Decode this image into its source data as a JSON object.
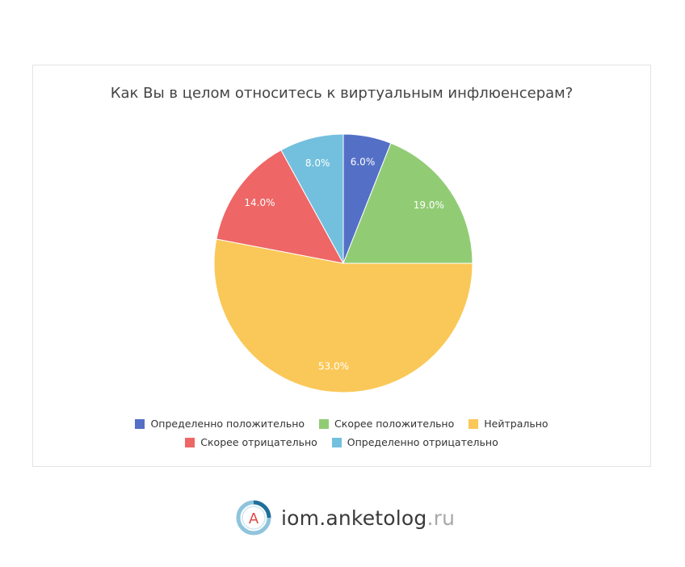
{
  "chart_data": {
    "type": "pie",
    "title": "Как Вы в целом относитесь к виртуальным инфлюенсерам?",
    "slices": [
      {
        "label": "Определенно положительно",
        "value": 6.0,
        "display": "6.0%",
        "color": "#5470c6"
      },
      {
        "label": "Скорее положительно",
        "value": 19.0,
        "display": "19.0%",
        "color": "#91cc75"
      },
      {
        "label": "Нейтрально",
        "value": 53.0,
        "display": "53.0%",
        "color": "#fac858"
      },
      {
        "label": "Скорее отрицательно",
        "value": 14.0,
        "display": "14.0%",
        "color": "#ee6666"
      },
      {
        "label": "Определенно отрицательно",
        "value": 8.0,
        "display": "8.0%",
        "color": "#73c0de"
      }
    ],
    "legend_position": "bottom"
  },
  "logo": {
    "brand": "iom.anketolog",
    "tld": ".ru",
    "mark_letter": "A"
  },
  "icons": {
    "logo_mark": "anketolog-logo-icon"
  }
}
